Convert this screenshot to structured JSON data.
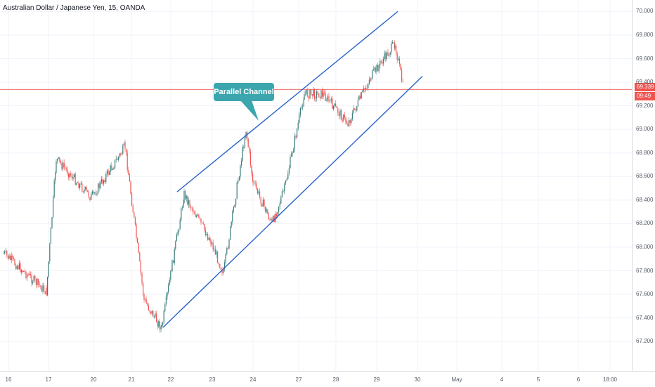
{
  "chart_title": "Australian Dollar / Japanese Yen, 15, OANDA",
  "callout_label": "Parallel Channel",
  "last_price_label": "69.339",
  "countdown_label": "09:49",
  "colors": {
    "candle_up": "#3b7d7a",
    "candle_down": "#f05451",
    "channel_line": "#2962c8",
    "price_line": "#f05451",
    "callout_bg": "#3ba6ae",
    "grid": "#f0f3fa"
  },
  "chart_data": {
    "type": "line",
    "title": "Australian Dollar / Japanese Yen, 15, OANDA",
    "xlabel": "",
    "ylabel": "",
    "ylim": [
      67.1,
      70.05
    ],
    "y_ticks": [
      "70.000",
      "69.800",
      "69.600",
      "69.400",
      "69.200",
      "69.000",
      "68.800",
      "68.600",
      "68.400",
      "68.200",
      "68.000",
      "67.800",
      "67.600",
      "67.400",
      "67.200"
    ],
    "x_ticks": [
      "16",
      "17",
      "20",
      "21",
      "22",
      "23",
      "24",
      "27",
      "28",
      "29",
      "30",
      "May",
      "4",
      "5",
      "6",
      "18:00"
    ],
    "series": [
      {
        "values": [
          {
            "x": "16",
            "y": 67.95
          },
          {
            "x": "17 (open)",
            "y": 67.62
          },
          {
            "x": "17",
            "y": 68.75
          },
          {
            "x": "20",
            "y": 68.42
          },
          {
            "x": "21",
            "y": 68.85
          },
          {
            "x": "21 (drop)",
            "y": 67.55
          },
          {
            "x": "21 low",
            "y": 67.31
          },
          {
            "x": "22",
            "y": 67.85
          },
          {
            "x": "22 spike",
            "y": 68.45
          },
          {
            "x": "23",
            "y": 68.05
          },
          {
            "x": "23 low",
            "y": 67.78
          },
          {
            "x": "24 high",
            "y": 69.0
          },
          {
            "x": "24",
            "y": 68.55
          },
          {
            "x": "24 low",
            "y": 68.2
          },
          {
            "x": "27",
            "y": 68.5
          },
          {
            "x": "27 jump",
            "y": 69.3
          },
          {
            "x": "28",
            "y": 69.3
          },
          {
            "x": "28 low",
            "y": 69.05
          },
          {
            "x": "29",
            "y": 69.45
          },
          {
            "x": "29 high",
            "y": 69.73
          },
          {
            "x": "29 last",
            "y": 69.339
          }
        ]
      }
    ],
    "annotations": [
      {
        "type": "channel_upper",
        "from": {
          "x": "22",
          "y": 68.47
        },
        "to": {
          "x": "29",
          "y": 70.0
        }
      },
      {
        "type": "channel_lower",
        "from": {
          "x": "21",
          "y": 67.32
        },
        "to": {
          "x": "30",
          "y": 69.45
        }
      },
      {
        "type": "horizontal_line",
        "y": 69.339
      }
    ]
  }
}
